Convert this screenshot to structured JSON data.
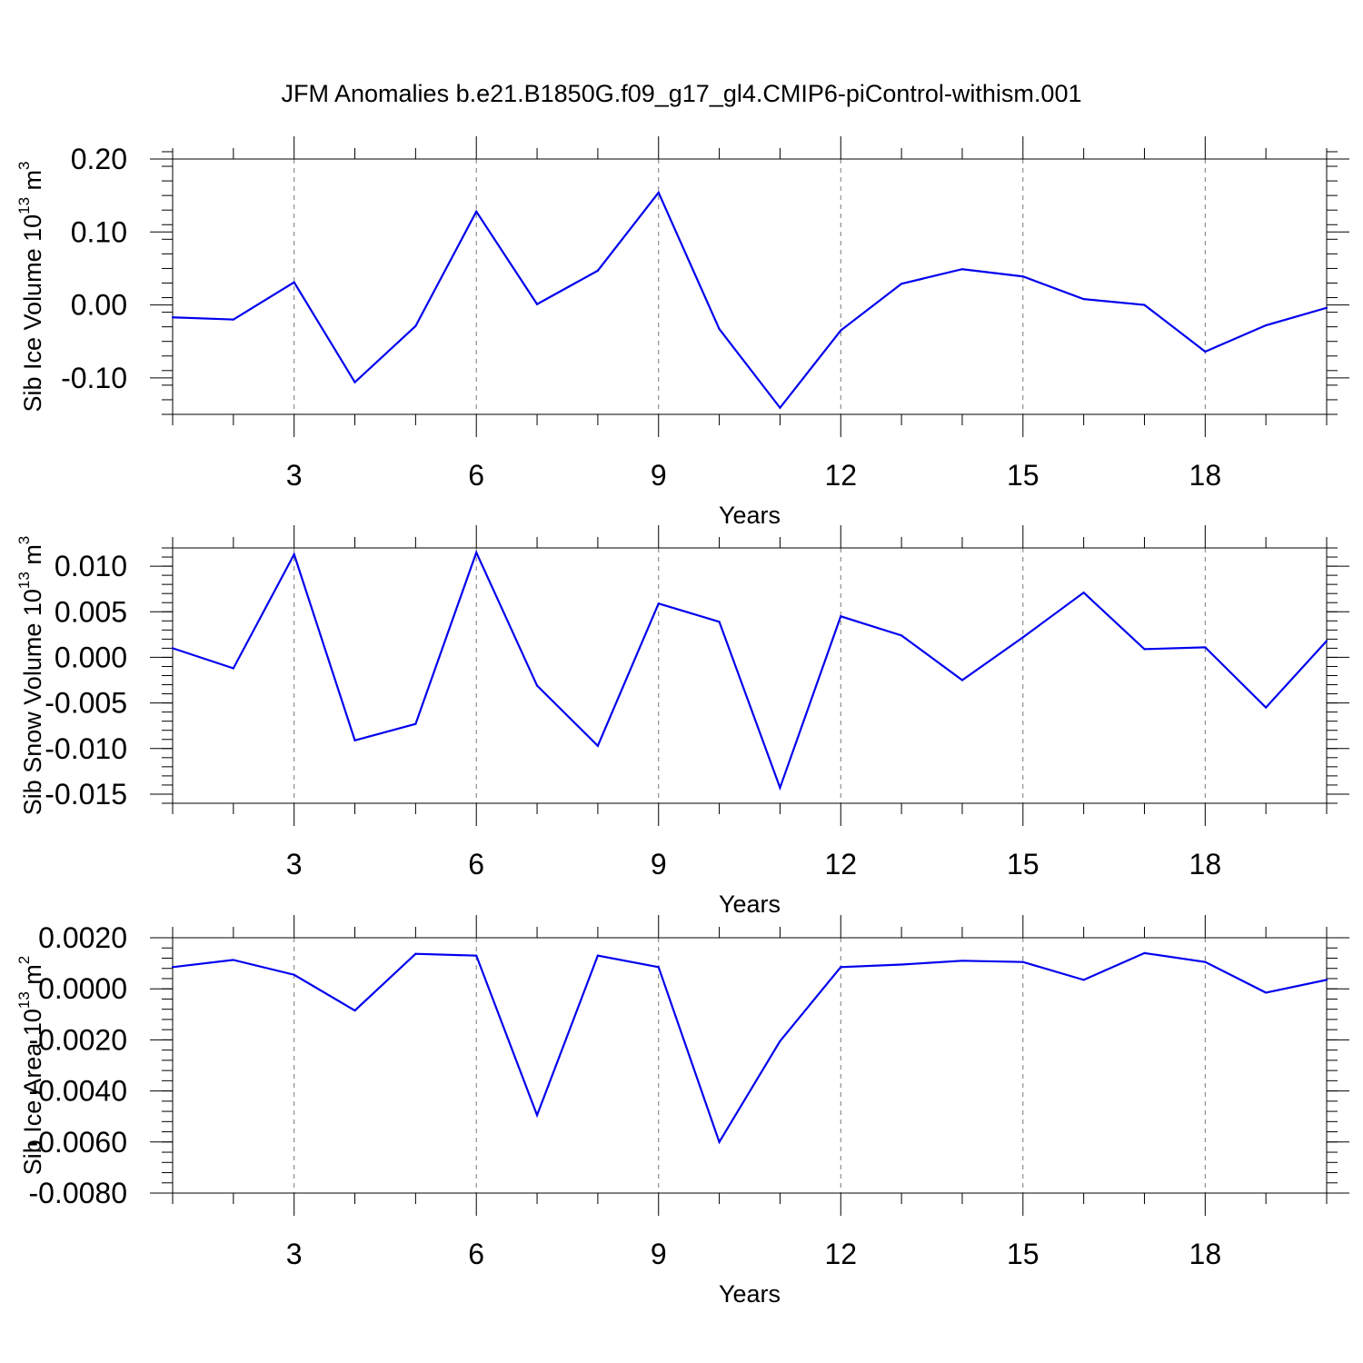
{
  "figure_title": "JFM Anomalies b.e21.B1850G.f09_g17_gl4.CMIP6-piControl-withism.001",
  "chart_data": [
    {
      "type": "line",
      "xlabel": "Years",
      "ylabel": "Sib Ice Volume 10",
      "ylabel_exp": "13",
      "ylabel_unit": " m",
      "ylabel_unit_exp": "3",
      "xlim": [
        1,
        20
      ],
      "ylim": [
        -0.15,
        0.2
      ],
      "xticks": [
        3,
        6,
        9,
        12,
        15,
        18
      ],
      "xtick_labels": [
        "3",
        "6",
        "9",
        "12",
        "15",
        "18"
      ],
      "xminor": [
        1,
        2,
        4,
        5,
        7,
        8,
        10,
        11,
        13,
        14,
        16,
        17,
        19,
        20
      ],
      "yticks": [
        -0.1,
        0.0,
        0.1,
        0.2
      ],
      "ytick_labels": [
        "-0.10",
        "0.00",
        "0.10",
        "0.20"
      ],
      "yminor_step": 0.02,
      "grid": "dashed vertical at major x ticks",
      "color": "#0000ee",
      "x": [
        1,
        2,
        3,
        4,
        5,
        6,
        7,
        8,
        9,
        10,
        11,
        12,
        13,
        14,
        15,
        16,
        17,
        18,
        19,
        20
      ],
      "values": [
        -0.017,
        -0.02,
        0.031,
        -0.106,
        -0.029,
        0.128,
        0.001,
        0.047,
        0.154,
        -0.033,
        -0.141,
        -0.035,
        0.029,
        0.049,
        0.039,
        0.008,
        0.0,
        -0.064,
        -0.028,
        -0.004
      ]
    },
    {
      "type": "line",
      "xlabel": "Years",
      "ylabel": "Sib Snow Volume 10",
      "ylabel_exp": "13",
      "ylabel_unit": " m",
      "ylabel_unit_exp": "3",
      "xlim": [
        1,
        20
      ],
      "ylim": [
        -0.016,
        0.012
      ],
      "xticks": [
        3,
        6,
        9,
        12,
        15,
        18
      ],
      "xtick_labels": [
        "3",
        "6",
        "9",
        "12",
        "15",
        "18"
      ],
      "xminor": [
        1,
        2,
        4,
        5,
        7,
        8,
        10,
        11,
        13,
        14,
        16,
        17,
        19,
        20
      ],
      "yticks": [
        -0.015,
        -0.01,
        -0.005,
        0.0,
        0.005,
        0.01
      ],
      "ytick_labels": [
        "-0.015",
        "-0.010",
        "-0.005",
        "0.000",
        "0.005",
        "0.010"
      ],
      "yminor_step": 0.001,
      "grid": "dashed vertical at major x ticks",
      "color": "#0000ee",
      "x": [
        1,
        2,
        3,
        4,
        5,
        6,
        7,
        8,
        9,
        10,
        11,
        12,
        13,
        14,
        15,
        16,
        17,
        18,
        19,
        20
      ],
      "values": [
        0.001,
        -0.0012,
        0.0113,
        -0.0091,
        -0.0073,
        0.0115,
        -0.0031,
        -0.0097,
        0.0059,
        0.0039,
        -0.0143,
        0.0045,
        0.0024,
        -0.0025,
        0.0022,
        0.0071,
        0.0009,
        0.0011,
        -0.0055,
        0.0018
      ]
    },
    {
      "type": "line",
      "xlabel": "Years",
      "ylabel": "Sib Ice Area 10",
      "ylabel_exp": "13",
      "ylabel_unit": " m",
      "ylabel_unit_exp": "2",
      "xlim": [
        1,
        20
      ],
      "ylim": [
        -0.008,
        0.002
      ],
      "xticks": [
        3,
        6,
        9,
        12,
        15,
        18
      ],
      "xtick_labels": [
        "3",
        "6",
        "9",
        "12",
        "15",
        "18"
      ],
      "xminor": [
        1,
        2,
        4,
        5,
        7,
        8,
        10,
        11,
        13,
        14,
        16,
        17,
        19,
        20
      ],
      "yticks": [
        -0.008,
        -0.006,
        -0.004,
        -0.002,
        0.0,
        0.002
      ],
      "ytick_labels": [
        "-0.0080",
        "-0.0060",
        "-0.0040",
        "-0.0020",
        "0.0000",
        "0.0020"
      ],
      "yminor_step": 0.0004,
      "grid": "dashed vertical at major x ticks",
      "color": "#0000ee",
      "x": [
        1,
        2,
        3,
        4,
        5,
        6,
        7,
        8,
        9,
        10,
        11,
        12,
        13,
        14,
        15,
        16,
        17,
        18,
        19,
        20
      ],
      "values": [
        0.00085,
        0.00113,
        0.00055,
        -0.00085,
        0.00137,
        0.0013,
        -0.00495,
        0.0013,
        0.00085,
        -0.006,
        -0.00205,
        0.00085,
        0.00095,
        0.0011,
        0.00105,
        0.00035,
        0.0014,
        0.00105,
        -0.00015,
        0.00035
      ]
    }
  ]
}
